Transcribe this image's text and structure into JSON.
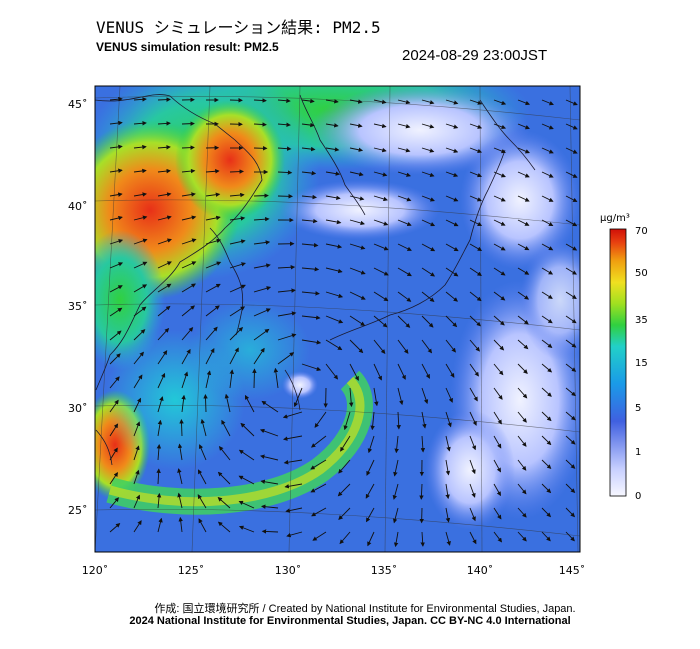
{
  "header": {
    "title_jp": "VENUS シミュレーション結果: PM2.5",
    "title_en": "VENUS simulation result: PM2.5",
    "timestamp": "2024-08-29 23:00JST"
  },
  "map": {
    "lon_ticks": [
      "120˚",
      "125˚",
      "130˚",
      "135˚",
      "140˚",
      "145˚"
    ],
    "lat_ticks": [
      "25˚",
      "30˚",
      "35˚",
      "40˚",
      "45˚"
    ],
    "lon_range": [
      120,
      145
    ],
    "lat_range": [
      23,
      46
    ],
    "features": [
      "typhoon-vortex-near-kyushu",
      "high-pm25-eastern-china",
      "wind-vectors"
    ],
    "colors": {
      "ocean_low": "#3a70e0",
      "land_low": "#5a88f0",
      "high": "#e83018",
      "mid": "#30d040",
      "clean": "#e8ecff"
    }
  },
  "legend": {
    "unit": "µg/m³",
    "ticks": [
      "70",
      "50",
      "35",
      "15",
      "5",
      "1",
      "0"
    ],
    "colors": [
      "#f7f7ff",
      "#c8d0ff",
      "#4060e0",
      "#1a9ae8",
      "#22d0c8",
      "#30d040",
      "#a0e020",
      "#f0e020",
      "#f0a010",
      "#e84010",
      "#d01008"
    ]
  },
  "footer": {
    "credit": "作成: 国立環境研究所 / Created by National Institute for Environmental Studies, Japan.",
    "copyright": "2024 National Institute for Environmental Studies, Japan. CC BY-NC 4.0 International"
  }
}
